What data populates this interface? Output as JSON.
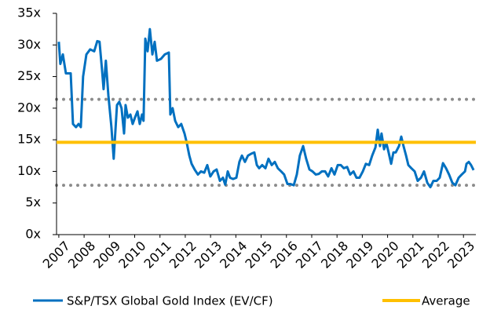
{
  "chart_data": {
    "type": "line",
    "xlim": [
      2006.91,
      2023.49
    ],
    "xticks": [
      2007,
      2008,
      2009,
      2010,
      2011,
      2012,
      2013,
      2014,
      2015,
      2016,
      2017,
      2018,
      2019,
      2020,
      2021,
      2022,
      2023
    ],
    "ylim": [
      0,
      35
    ],
    "yticks": [
      {
        "value": 0,
        "label": "0x"
      },
      {
        "value": 5,
        "label": "5x"
      },
      {
        "value": 10,
        "label": "10x"
      },
      {
        "value": 15,
        "label": "15x"
      },
      {
        "value": 20,
        "label": "20x"
      },
      {
        "value": 25,
        "label": "25x"
      },
      {
        "value": 30,
        "label": "30x"
      },
      {
        "value": 35,
        "label": "35x"
      }
    ],
    "x": [
      2007.0,
      2007.06,
      2007.16,
      2007.28,
      2007.47,
      2007.56,
      2007.68,
      2007.78,
      2007.87,
      2007.96,
      2008.09,
      2008.24,
      2008.4,
      2008.52,
      2008.61,
      2008.71,
      2008.77,
      2008.86,
      2008.96,
      2009.08,
      2009.17,
      2009.3,
      2009.39,
      2009.48,
      2009.58,
      2009.64,
      2009.73,
      2009.83,
      2009.92,
      2010.01,
      2010.11,
      2010.2,
      2010.29,
      2010.35,
      2010.42,
      2010.51,
      2010.6,
      2010.7,
      2010.79,
      2010.88,
      2011.04,
      2011.19,
      2011.35,
      2011.41,
      2011.5,
      2011.6,
      2011.72,
      2011.84,
      2011.97,
      2012.06,
      2012.16,
      2012.25,
      2012.37,
      2012.5,
      2012.62,
      2012.75,
      2012.87,
      2012.99,
      2013.12,
      2013.24,
      2013.37,
      2013.49,
      2013.58,
      2013.68,
      2013.77,
      2013.89,
      2014.02,
      2014.14,
      2014.24,
      2014.36,
      2014.48,
      2014.61,
      2014.73,
      2014.83,
      2014.92,
      2015.04,
      2015.17,
      2015.29,
      2015.42,
      2015.54,
      2015.66,
      2015.79,
      2015.91,
      2016.04,
      2016.16,
      2016.29,
      2016.41,
      2016.53,
      2016.66,
      2016.78,
      2016.91,
      2017.03,
      2017.16,
      2017.28,
      2017.4,
      2017.53,
      2017.65,
      2017.78,
      2017.9,
      2018.03,
      2018.15,
      2018.27,
      2018.4,
      2018.52,
      2018.65,
      2018.77,
      2018.89,
      2019.02,
      2019.14,
      2019.27,
      2019.39,
      2019.52,
      2019.61,
      2019.7,
      2019.76,
      2019.86,
      2019.95,
      2020.04,
      2020.14,
      2020.23,
      2020.32,
      2020.45,
      2020.54,
      2020.63,
      2020.73,
      2020.82,
      2020.94,
      2021.07,
      2021.19,
      2021.32,
      2021.44,
      2021.57,
      2021.69,
      2021.81,
      2021.94,
      2022.06,
      2022.19,
      2022.31,
      2022.43,
      2022.56,
      2022.68,
      2022.81,
      2022.93,
      2023.06,
      2023.12,
      2023.21,
      2023.3,
      2023.4
    ],
    "series": [
      {
        "name": "S&P/TSX Global Gold Index (EV/CF)",
        "color": "#0070c0",
        "values": [
          30.5,
          27,
          28.5,
          25.5,
          25.5,
          17.5,
          17,
          17.5,
          17,
          25,
          28.5,
          29.3,
          29,
          30.6,
          30.5,
          26,
          23,
          27.5,
          22,
          17,
          12,
          20.5,
          21,
          20,
          16,
          20.5,
          18.5,
          19,
          17.5,
          18.5,
          19.5,
          17.5,
          19,
          18,
          31,
          29,
          32.5,
          28.5,
          30.5,
          27.5,
          27.8,
          28.5,
          28.8,
          19,
          20,
          18,
          17,
          17.5,
          16,
          14.5,
          12.5,
          11.2,
          10.3,
          9.5,
          10,
          9.8,
          11,
          9.2,
          10,
          10.3,
          8.5,
          9,
          7.9,
          10,
          9,
          8.8,
          9,
          11.5,
          12.5,
          11.5,
          12.5,
          12.8,
          13,
          11,
          10.5,
          11,
          10.5,
          12,
          11,
          11.5,
          10.5,
          10,
          9.5,
          8,
          8,
          7.8,
          9.5,
          12.5,
          14,
          12,
          10.3,
          10,
          9.5,
          9.6,
          10,
          10,
          9.2,
          10.5,
          9.5,
          11,
          11,
          10.5,
          10.7,
          9.5,
          10,
          9,
          9,
          10,
          11.2,
          11,
          12.5,
          13.8,
          16.6,
          14,
          16,
          13.5,
          14.5,
          13,
          11.2,
          13,
          13,
          14,
          15.5,
          14,
          12.5,
          11,
          10.5,
          10,
          8.5,
          9,
          10,
          8.2,
          7.5,
          8.5,
          8.5,
          9,
          11.3,
          10.5,
          9.5,
          8.2,
          7.8,
          9,
          9.5,
          10,
          11.2,
          11.5,
          11,
          10.2
        ]
      },
      {
        "name": "Average",
        "color": "#ffc000",
        "value": 14.6
      }
    ],
    "reference_lines": [
      21.4,
      7.8
    ],
    "reference_color": "#8c8c8c"
  }
}
